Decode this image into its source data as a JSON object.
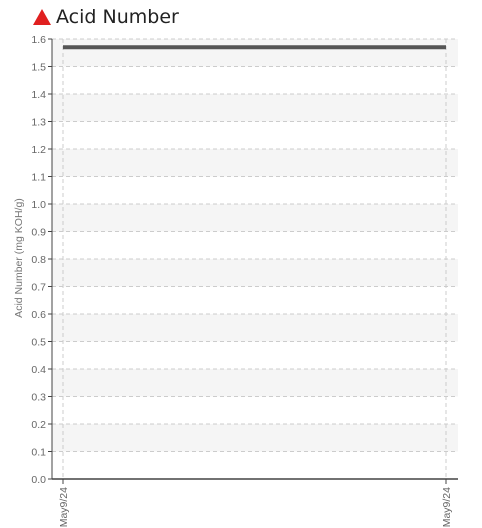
{
  "header": {
    "title": "Acid Number",
    "alert_icon": "warning-triangle-icon",
    "alert_color": "#e02020"
  },
  "chart_data": {
    "type": "line",
    "title": "Acid Number",
    "xlabel": "",
    "ylabel": "Acid Number (mg KOH/g)",
    "ylim": [
      0.0,
      1.6
    ],
    "y_ticks": [
      "0.0",
      "0.1",
      "0.2",
      "0.3",
      "0.4",
      "0.5",
      "0.6",
      "0.7",
      "0.8",
      "0.9",
      "1.0",
      "1.1",
      "1.2",
      "1.3",
      "1.4",
      "1.5",
      "1.6"
    ],
    "x_ticks": [
      "May9/24",
      "May9/24"
    ],
    "grid": true,
    "series": [
      {
        "values": [
          1.57,
          1.57
        ],
        "color": "#555555"
      }
    ],
    "colors": {
      "band": "#f5f5f5",
      "grid": "#cccccc",
      "axis": "#444444",
      "line": "#555555"
    }
  }
}
